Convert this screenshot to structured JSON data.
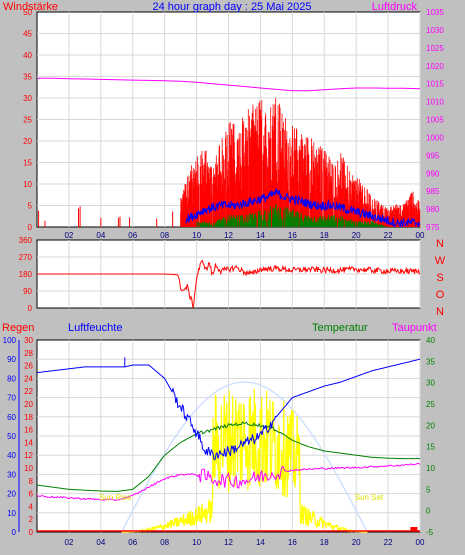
{
  "header": {
    "left": "Windstärke",
    "center": "24 hour graph day : 25 Mai 2025",
    "right": "Luftdruck"
  },
  "compass": [
    "N",
    "W",
    "S",
    "O",
    "N"
  ],
  "bottom_labels": {
    "regen": "Regen",
    "luftfeuchte": "Luftfeuchte",
    "temperatur": "Temperatur",
    "taupunkt": "Taupunkt"
  },
  "annotations": {
    "sunrise": "Sun Rise",
    "sunset": "Sun Set"
  },
  "colors": {
    "wind": "#ff0000",
    "gust_mid": "#0000ff",
    "gust_low": "#008000",
    "pressure": "#ff00ff",
    "direction": "#ff0000",
    "humidity": "#0000ff",
    "temperature": "#008000",
    "dewpoint": "#ff00ff",
    "solar": "#ffff00",
    "rain": "#ff0000",
    "frame_bg": "#ffffff"
  },
  "chart_data": [
    {
      "type": "bar",
      "title": "24 hour graph day : 25 Mai 2025",
      "ylabel": "Windstärke",
      "y2label": "Luftdruck",
      "ylim": [
        0,
        50
      ],
      "y2lim": [
        975,
        1035
      ],
      "yticks": [
        "0",
        "5",
        "10",
        "15",
        "20",
        "25",
        "30",
        "35",
        "40",
        "45",
        "50"
      ],
      "y2ticks": [
        "975",
        "980",
        "985",
        "990",
        "995",
        "1000",
        "1005",
        "1010",
        "1015",
        "1020",
        "1025",
        "1030",
        "1035"
      ],
      "xticks": [
        "02",
        "04",
        "06",
        "08",
        "10",
        "12",
        "14",
        "16",
        "18",
        "20",
        "22",
        "00"
      ],
      "series": [
        {
          "name": "Windstärke",
          "x": [
            0.1,
            0.5,
            2.6,
            4.0,
            5.1,
            5.8,
            7.5,
            8.5,
            9.0,
            9.5,
            10.0,
            10.5,
            11.0,
            11.5,
            12.0,
            12.5,
            13.0,
            13.5,
            14.0,
            14.5,
            15.0,
            15.5,
            16.0,
            16.5,
            17.0,
            17.5,
            18.0,
            18.5,
            19.0,
            19.5,
            20.0,
            20.5,
            21.0,
            21.5,
            22.0,
            22.5,
            23.0,
            23.5,
            24.0
          ],
          "values": [
            3,
            2,
            4,
            2,
            3,
            3,
            2,
            3,
            6,
            12,
            15,
            17,
            14,
            18,
            23,
            22,
            24,
            26,
            28,
            25,
            30,
            24,
            22,
            21,
            20,
            18,
            17,
            14,
            16,
            13,
            11,
            9,
            7,
            5,
            4,
            5,
            5,
            8,
            5
          ]
        },
        {
          "name": "",
          "x": [
            9.5,
            10.5,
            11.5,
            12.5,
            13.5,
            14.5,
            15.0,
            15.5,
            16.5,
            17.5,
            18.5,
            19.5,
            20.5,
            21.5,
            22.5,
            23.5,
            24.0
          ],
          "values": [
            2,
            4,
            5,
            5,
            6,
            7,
            8,
            7,
            6,
            5,
            5,
            4,
            3,
            2,
            1,
            1,
            1
          ]
        },
        {
          "name": "",
          "x": [
            10.0,
            11.0,
            12.0,
            13.0,
            14.0,
            15.0,
            16.0,
            17.0,
            18.0,
            19.0,
            20.0,
            21.0,
            22.0,
            23.0,
            24.0
          ],
          "values": [
            1,
            1,
            2,
            2,
            3,
            4,
            3,
            2,
            2,
            2,
            1,
            1,
            0,
            0,
            0
          ]
        },
        {
          "name": "Luftdruck",
          "x": [
            0,
            1,
            2,
            3,
            4,
            5,
            6,
            7,
            8,
            9,
            10,
            11,
            12,
            13,
            14,
            15,
            16,
            17,
            18,
            19,
            20,
            21,
            22,
            23,
            24
          ],
          "values": [
            1016.5,
            1016.5,
            1016.4,
            1016.3,
            1016.2,
            1016.1,
            1016.0,
            1015.9,
            1015.8,
            1015.7,
            1015.4,
            1015.0,
            1014.6,
            1014.2,
            1013.8,
            1013.4,
            1013.0,
            1013.0,
            1013.3,
            1013.6,
            1013.8,
            1013.8,
            1013.7,
            1013.7,
            1013.6
          ]
        }
      ]
    },
    {
      "type": "line",
      "yticks": [
        "0",
        "90",
        "180",
        "270",
        "360"
      ],
      "ylim": [
        0,
        360
      ],
      "series": [
        {
          "name": "Windrichtung",
          "x": [
            0,
            2,
            4,
            6,
            8,
            8.8,
            9.0,
            9.2,
            9.4,
            9.6,
            9.8,
            10.0,
            10.2,
            10.4,
            10.6,
            10.8,
            11.0,
            11.2,
            11.5,
            12.0,
            12.5,
            13.0,
            13.5,
            14.0,
            15,
            16,
            17,
            18,
            19,
            20,
            21,
            22,
            23,
            24
          ],
          "values": [
            180,
            180,
            180,
            180,
            180,
            176,
            110,
            90,
            115,
            60,
            10,
            160,
            220,
            250,
            200,
            240,
            170,
            230,
            195,
            205,
            215,
            190,
            180,
            205,
            210,
            200,
            205,
            200,
            200,
            205,
            200,
            195,
            195,
            195
          ]
        }
      ]
    },
    {
      "type": "line",
      "ylabel": "Luftfeuchte",
      "y2label": "Temperatur",
      "yticks_humidity": [
        "0",
        "10",
        "20",
        "30",
        "40",
        "50",
        "60",
        "70",
        "80",
        "90",
        "100"
      ],
      "yticks_rain": [
        "0",
        "2",
        "4",
        "6",
        "8",
        "10",
        "12",
        "14",
        "16",
        "18",
        "20",
        "22",
        "24",
        "26",
        "28",
        "30"
      ],
      "y2ticks": [
        "-5",
        "0",
        "5",
        "10",
        "15",
        "20",
        "25",
        "30",
        "35",
        "40"
      ],
      "ylim": [
        0,
        100
      ],
      "y2lim": [
        -5,
        40
      ],
      "series": [
        {
          "name": "Luftfeuchte",
          "x": [
            0,
            1,
            2,
            3,
            4,
            5,
            5.5,
            6,
            7,
            8,
            9,
            10,
            10.5,
            11,
            12,
            13,
            14,
            15,
            16,
            17,
            18,
            19,
            20,
            21,
            22,
            23,
            24
          ],
          "values": [
            83,
            84,
            85,
            86,
            86,
            86,
            86,
            87,
            87,
            80,
            65,
            52,
            43,
            40,
            42,
            46,
            50,
            60,
            70,
            73,
            76,
            78,
            81,
            84,
            86,
            88,
            90
          ]
        },
        {
          "name": "Temperatur",
          "x": [
            0,
            1,
            2,
            3,
            4,
            5,
            6,
            7,
            8,
            9,
            10,
            11,
            12,
            13,
            14,
            15,
            16,
            17,
            18,
            19,
            20,
            21,
            22,
            23,
            24
          ],
          "values": [
            6,
            5.5,
            5,
            4.8,
            4.6,
            4.5,
            5,
            8,
            13,
            16,
            18,
            19,
            20,
            20.5,
            20,
            19,
            16.5,
            15,
            14,
            13.5,
            13,
            12.5,
            12.3,
            12.2,
            12.2
          ]
        },
        {
          "name": "Taupunkt",
          "x": [
            0,
            1,
            2,
            3,
            4,
            5,
            6,
            7,
            8,
            9,
            10,
            11,
            12,
            13,
            14,
            15,
            16,
            17,
            18,
            19,
            20,
            21,
            22,
            23,
            24
          ],
          "values": [
            3.5,
            3.2,
            3,
            2.8,
            2.6,
            2.5,
            3.5,
            5.5,
            7.5,
            8.5,
            8.5,
            7.5,
            7,
            7,
            8,
            9,
            9.5,
            9.7,
            9.9,
            10,
            10.1,
            10.3,
            10.5,
            10.7,
            11
          ]
        },
        {
          "name": "Regen",
          "x": [
            0,
            6,
            12,
            18,
            23.5,
            24
          ],
          "values": [
            0,
            0,
            0,
            0,
            0.5,
            0.5
          ]
        }
      ]
    }
  ]
}
